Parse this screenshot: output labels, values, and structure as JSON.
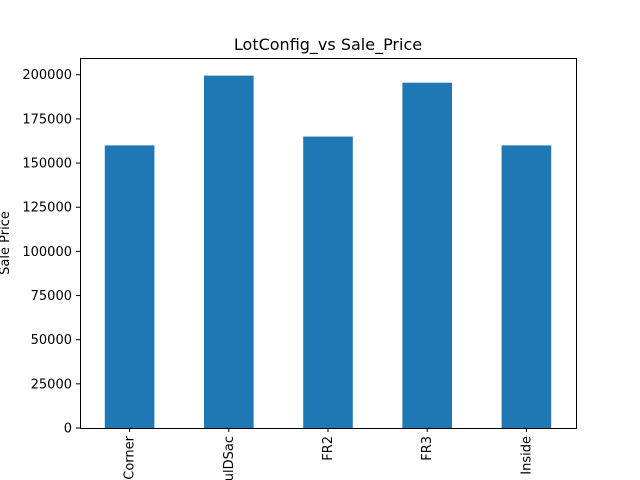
{
  "chart_data": {
    "type": "bar",
    "title": "LotConfig_vs Sale_Price",
    "xlabel": "",
    "ylabel": "Sale Price",
    "categories": [
      "Corner",
      "CulDSac",
      "FR2",
      "FR3",
      "Inside"
    ],
    "values": [
      160000,
      199500,
      165000,
      195500,
      160000
    ],
    "ylim": [
      0,
      209475
    ],
    "yticks": [
      0,
      25000,
      50000,
      75000,
      100000,
      125000,
      150000,
      175000,
      200000
    ],
    "bar_color": "#1f77b4",
    "grid": false,
    "legend": "none"
  }
}
